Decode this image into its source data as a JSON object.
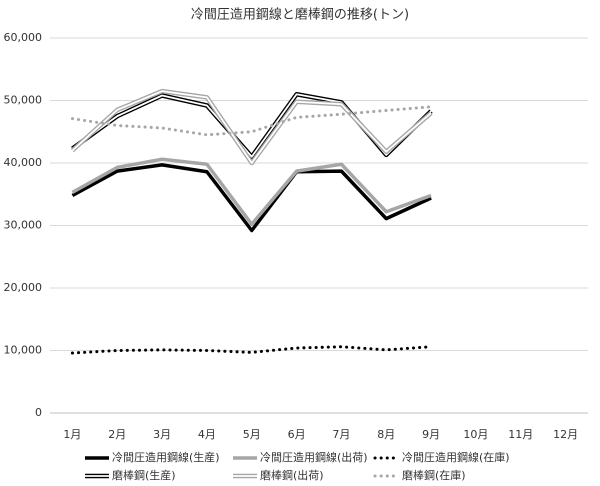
{
  "chart_data": {
    "type": "line",
    "title": "冷間圧造用鋼線と磨棒鋼の推移(トン)",
    "categories": [
      "1月",
      "2月",
      "3月",
      "4月",
      "5月",
      "6月",
      "7月",
      "8月",
      "9月",
      "10月",
      "11月",
      "12月"
    ],
    "ylim": [
      0,
      60000
    ],
    "yticks": [
      0,
      {
        "value": 10000,
        "label": "10,000"
      },
      {
        "value": 20000,
        "label": "20,000"
      },
      {
        "value": 30000,
        "label": "30,000"
      },
      {
        "value": 40000,
        "label": "40,000"
      },
      {
        "value": 50000,
        "label": "50,000"
      },
      {
        "value": 60000,
        "label": "60,000"
      }
    ],
    "grid": true,
    "legend": "bottom",
    "series": [
      {
        "name": "冷間圧造用鋼線(生産)",
        "color": "#000000",
        "line_style": "solid",
        "values": [
          34800,
          38700,
          39700,
          38600,
          29200,
          38600,
          38700,
          31100,
          34400,
          null,
          null,
          null
        ]
      },
      {
        "name": "冷間圧造用鋼線(出荷)",
        "color": "#a6a6a6",
        "line_style": "solid",
        "values": [
          35300,
          39300,
          40600,
          39800,
          30200,
          38700,
          39800,
          32200,
          34800,
          null,
          null,
          null
        ]
      },
      {
        "name": "冷間圧造用鋼線(在庫)",
        "color": "#000000",
        "line_style": "dotted",
        "values": [
          9600,
          10000,
          10100,
          10000,
          9700,
          10400,
          10600,
          10100,
          10600,
          null,
          null,
          null
        ]
      },
      {
        "name": "磨棒鋼(生産)",
        "color": "#000000",
        "line_style": "double",
        "values": [
          42300,
          47500,
          50800,
          49200,
          41000,
          51000,
          49700,
          41300,
          48300,
          null,
          null,
          null
        ]
      },
      {
        "name": "磨棒鋼(出荷)",
        "color": "#a6a6a6",
        "line_style": "double",
        "values": [
          42000,
          48500,
          51500,
          50500,
          40000,
          49800,
          49400,
          41800,
          48000,
          null,
          null,
          null
        ]
      },
      {
        "name": "磨棒鋼(在庫)",
        "color": "#a6a6a6",
        "line_style": "dotted",
        "values": [
          47100,
          46000,
          45600,
          44500,
          45000,
          47300,
          47800,
          48400,
          49000,
          null,
          null,
          null
        ]
      }
    ]
  }
}
